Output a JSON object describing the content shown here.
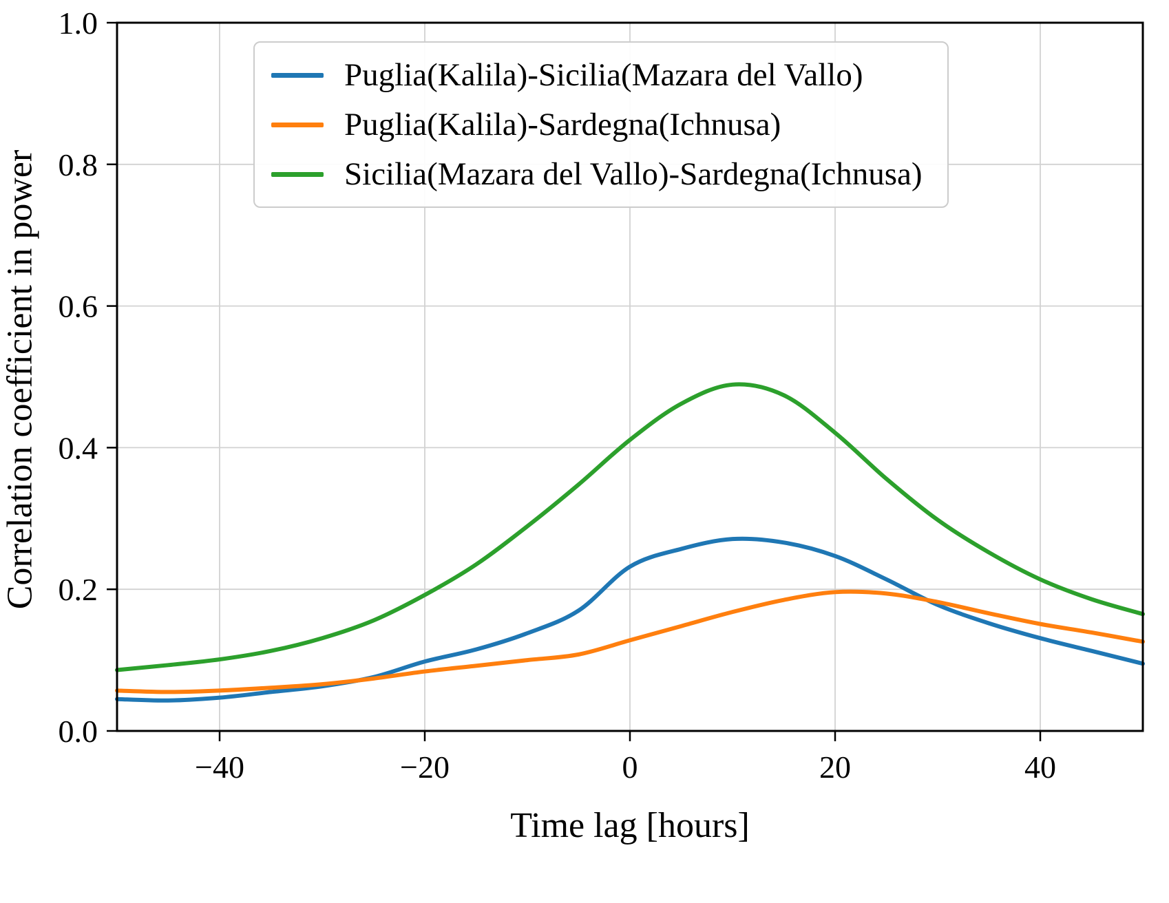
{
  "chart_data": {
    "type": "line",
    "title": "",
    "xlabel": "Time lag [hours]",
    "ylabel": "Correlation coefficient in power",
    "xlim": [
      -50,
      50
    ],
    "ylim": [
      0.0,
      1.0
    ],
    "grid": true,
    "legend_position": "upper center inside",
    "xticks": [
      -40,
      -20,
      0,
      20,
      40
    ],
    "xtick_labels": [
      "−40",
      "−20",
      "0",
      "20",
      "40"
    ],
    "yticks": [
      0.0,
      0.2,
      0.4,
      0.6,
      0.8,
      1.0
    ],
    "ytick_labels": [
      "0.0",
      "0.2",
      "0.4",
      "0.6",
      "0.8",
      "1.0"
    ],
    "x": [
      -50,
      -45,
      -40,
      -35,
      -30,
      -25,
      -20,
      -15,
      -10,
      -5,
      0,
      5,
      10,
      15,
      20,
      25,
      30,
      35,
      40,
      45,
      50
    ],
    "series": [
      {
        "name": "Puglia(Kalila)-Sicilia(Mazara del Vallo)",
        "color": "#1f77b4",
        "values": [
          0.045,
          0.043,
          0.047,
          0.055,
          0.063,
          0.076,
          0.098,
          0.115,
          0.138,
          0.17,
          0.232,
          0.257,
          0.271,
          0.266,
          0.247,
          0.214,
          0.178,
          0.152,
          0.131,
          0.113,
          0.095
        ]
      },
      {
        "name": "Puglia(Kalila)-Sardegna(Ichnusa)",
        "color": "#ff7f0e",
        "values": [
          0.057,
          0.055,
          0.057,
          0.061,
          0.066,
          0.074,
          0.084,
          0.092,
          0.1,
          0.108,
          0.128,
          0.148,
          0.168,
          0.185,
          0.196,
          0.194,
          0.182,
          0.166,
          0.151,
          0.139,
          0.126
        ]
      },
      {
        "name": "Sicilia(Mazara del Vallo)-Sardegna(Ichnusa)",
        "color": "#2ca02c",
        "values": [
          0.086,
          0.093,
          0.101,
          0.113,
          0.131,
          0.156,
          0.192,
          0.235,
          0.289,
          0.348,
          0.411,
          0.462,
          0.489,
          0.474,
          0.421,
          0.356,
          0.298,
          0.252,
          0.214,
          0.186,
          0.165
        ]
      }
    ]
  }
}
